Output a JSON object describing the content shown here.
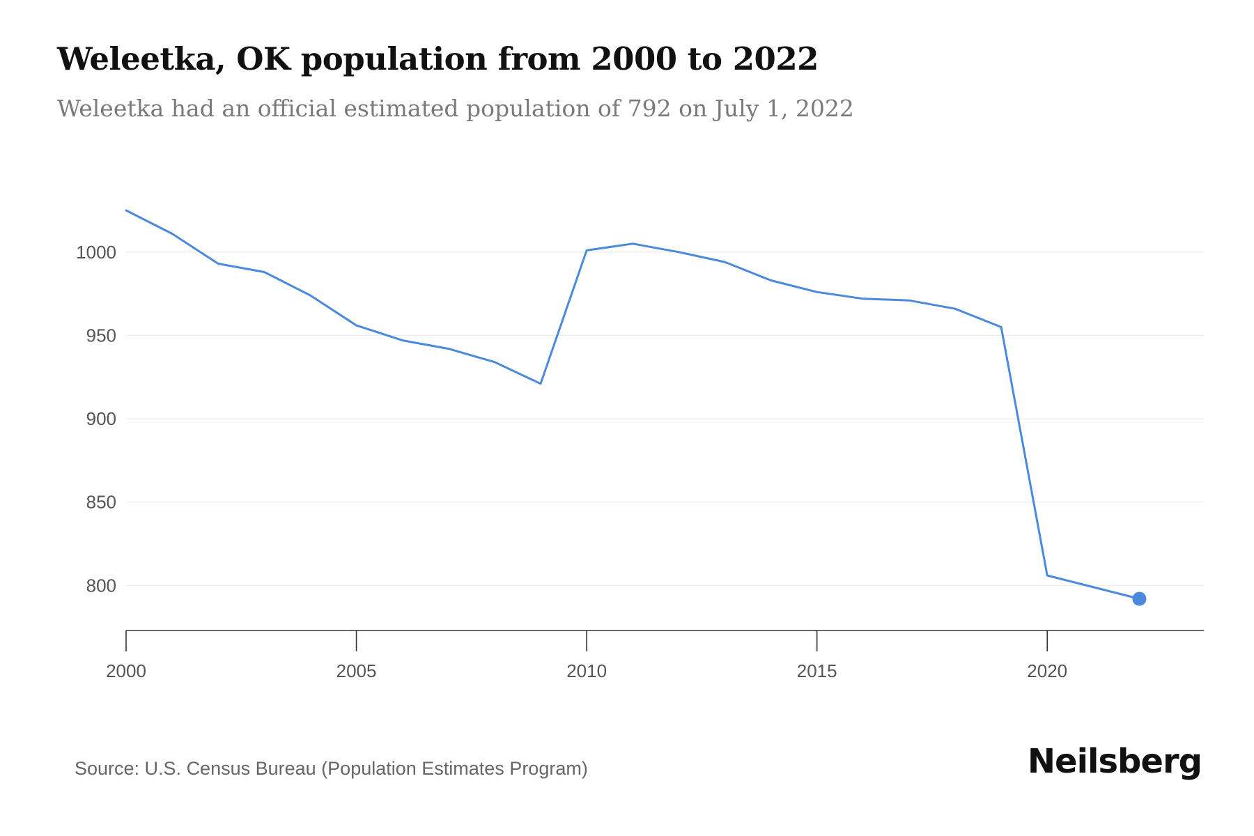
{
  "header": {
    "title": "Weleetka, OK population from 2000 to 2022",
    "subtitle": "Weleetka had an official estimated population of 792 on July 1, 2022"
  },
  "footer": {
    "source": "Source: U.S. Census Bureau (Population Estimates Program)",
    "brand": "Neilsberg"
  },
  "chart_data": {
    "type": "line",
    "title": "Weleetka, OK population from 2000 to 2022",
    "xlabel": "",
    "ylabel": "",
    "x": [
      2000,
      2001,
      2002,
      2003,
      2004,
      2005,
      2006,
      2007,
      2008,
      2009,
      2010,
      2011,
      2012,
      2013,
      2014,
      2015,
      2016,
      2017,
      2018,
      2019,
      2020,
      2022
    ],
    "series": [
      {
        "values": [
          1025,
          1011,
          993,
          988,
          974,
          956,
          947,
          942,
          934,
          921,
          1001,
          1005,
          1000,
          994,
          983,
          976,
          972,
          971,
          966,
          955,
          806,
          792
        ]
      }
    ],
    "highlight": {
      "x": 2022,
      "y": 792
    },
    "xlim": [
      2000,
      2023.4
    ],
    "ylim": [
      773,
      1030
    ],
    "xticks": [
      2000,
      2005,
      2010,
      2015,
      2020
    ],
    "yticks": [
      800,
      850,
      900,
      950,
      1000
    ],
    "grid": "horizontal",
    "colors": {
      "line": "#4a89dc",
      "grid": "#ececec",
      "axis": "#333333",
      "tick_label": "#555555"
    }
  }
}
